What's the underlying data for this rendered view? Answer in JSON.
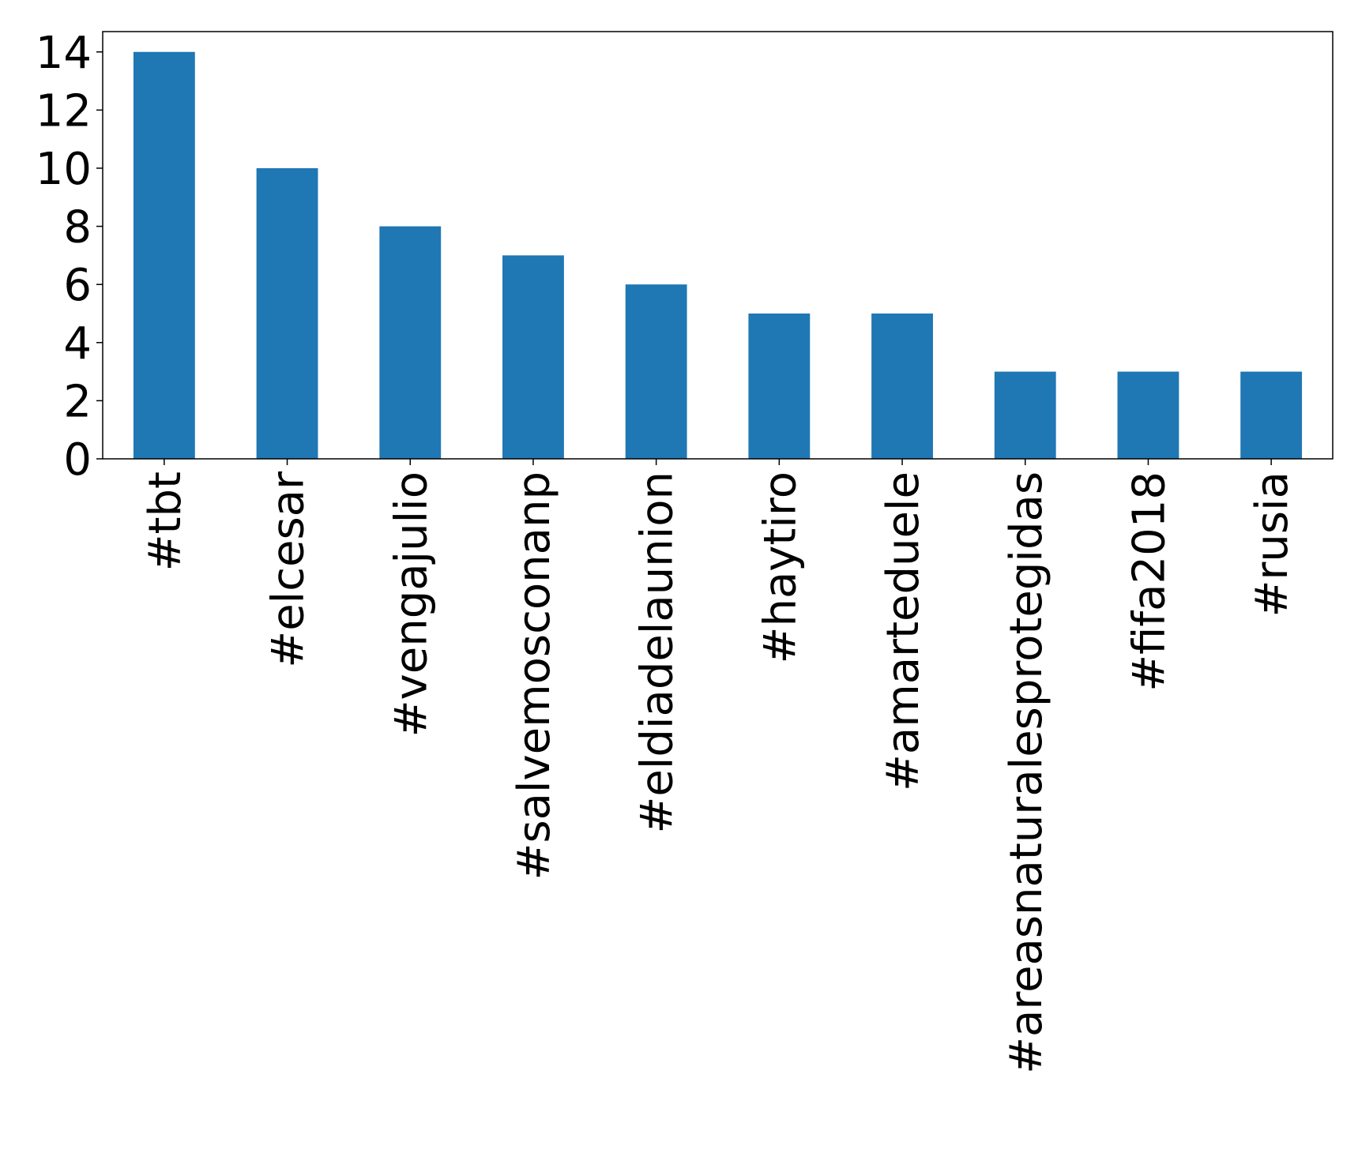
{
  "chart_data": {
    "type": "bar",
    "categories": [
      "#tbt",
      "#elcesar",
      "#vengajulio",
      "#salvemosconanp",
      "#eldiadelaunion",
      "#haytiro",
      "#amarteduele",
      "#areasnaturalesprotegidas",
      "#fifa2018",
      "#rusia"
    ],
    "values": [
      14,
      10,
      8,
      7,
      6,
      5,
      5,
      3,
      3,
      3
    ],
    "color": "#1f77b4",
    "ylim": [
      0,
      14.7
    ],
    "yticks": [
      0,
      2,
      4,
      6,
      8,
      10,
      12,
      14
    ],
    "grid": false
  }
}
